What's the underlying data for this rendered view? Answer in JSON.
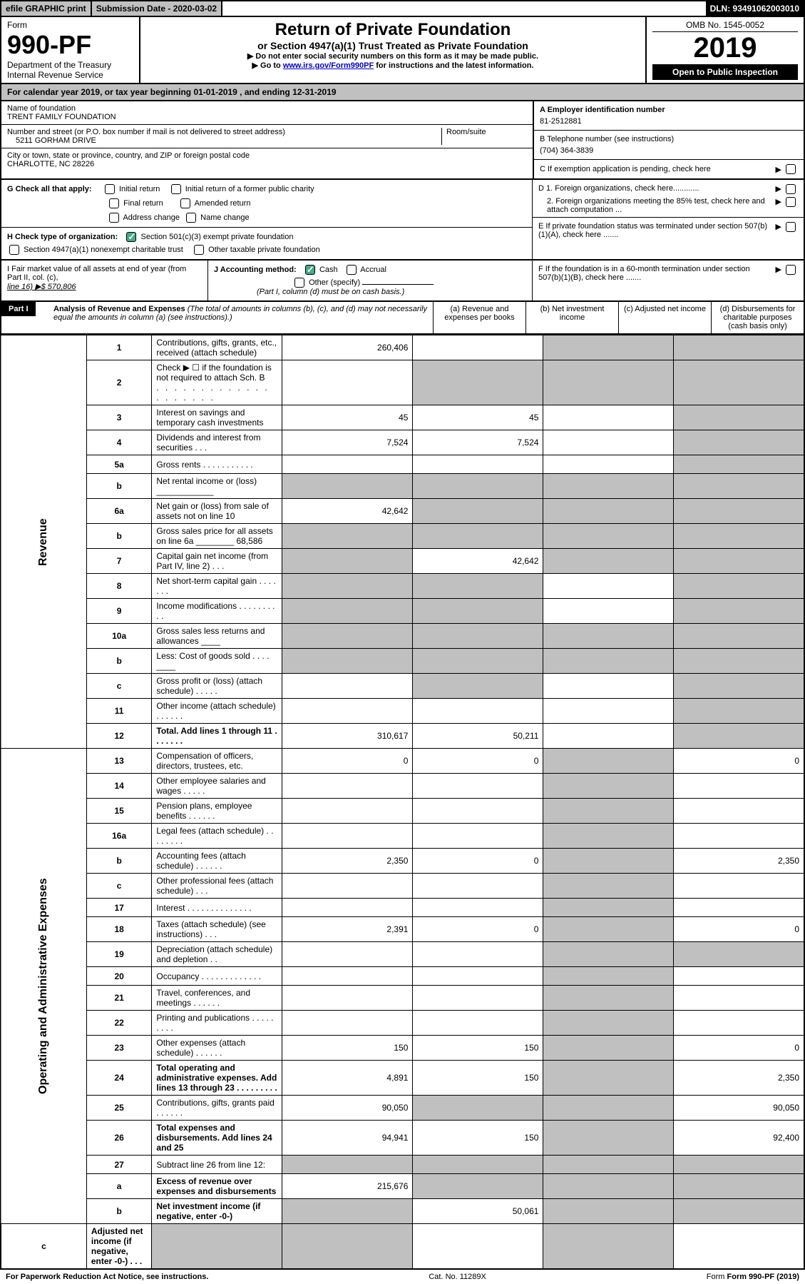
{
  "top": {
    "efile": "efile GRAPHIC print",
    "subdate_label": "Submission Date - 2020-03-02",
    "dln": "DLN: 93491062003010"
  },
  "header": {
    "form_label": "Form",
    "form_num": "990-PF",
    "dept": "Department of the Treasury",
    "irs": "Internal Revenue Service",
    "title": "Return of Private Foundation",
    "subtitle": "or Section 4947(a)(1) Trust Treated as Private Foundation",
    "instr1": "▶ Do not enter social security numbers on this form as it may be made public.",
    "instr2_pre": "▶ Go to ",
    "instr2_link": "www.irs.gov/Form990PF",
    "instr2_post": " for instructions and the latest information.",
    "omb": "OMB No. 1545-0052",
    "year": "2019",
    "open": "Open to Public Inspection"
  },
  "calyear": "For calendar year 2019, or tax year beginning 01-01-2019             , and ending 12-31-2019",
  "id": {
    "name_label": "Name of foundation",
    "name": "TRENT FAMILY FOUNDATION",
    "addr_label": "Number and street (or P.O. box number if mail is not delivered to street address)",
    "addr": "5211 GORHAM DRIVE",
    "room_label": "Room/suite",
    "city_label": "City or town, state or province, country, and ZIP or foreign postal code",
    "city": "CHARLOTTE, NC  28226",
    "a_label": "A Employer identification number",
    "a_val": "81-2512881",
    "b_label": "B Telephone number (see instructions)",
    "b_val": "(704) 364-3839",
    "c_label": "C If exemption application is pending, check here"
  },
  "g": {
    "label": "G Check all that apply:",
    "c1": "Initial return",
    "c2": "Initial return of a former public charity",
    "c3": "Final return",
    "c4": "Amended return",
    "c5": "Address change",
    "c6": "Name change"
  },
  "h": {
    "label": "H Check type of organization:",
    "c1": "Section 501(c)(3) exempt private foundation",
    "c2": "Section 4947(a)(1) nonexempt charitable trust",
    "c3": "Other taxable private foundation"
  },
  "d": {
    "d1": "D 1. Foreign organizations, check here............",
    "d2": "2. Foreign organizations meeting the 85% test, check here and attach computation ..."
  },
  "e": "E  If private foundation status was terminated under section 507(b)(1)(A), check here .......",
  "f": "F  If the foundation is in a 60-month termination under section 507(b)(1)(B), check here .......",
  "i": {
    "label": "I Fair market value of all assets at end of year (from Part II, col. (c),",
    "line16": "line 16) ▶$  570,806"
  },
  "j": {
    "label": "J Accounting method:",
    "cash": "Cash",
    "accrual": "Accrual",
    "other": "Other (specify)",
    "note": "(Part I, column (d) must be on cash basis.)"
  },
  "part1": {
    "tag": "Part I",
    "title": "Analysis of Revenue and Expenses",
    "note": "(The total of amounts in columns (b), (c), and (d) may not necessarily equal the amounts in column (a) (see instructions).)",
    "col_a": "(a)   Revenue and expenses per books",
    "col_b": "(b)  Net investment income",
    "col_c": "(c)  Adjusted net income",
    "col_d": "(d)  Disbursements for charitable purposes (cash basis only)"
  },
  "revenue_label": "Revenue",
  "oae_label": "Operating and Administrative Expenses",
  "rows": [
    {
      "n": "1",
      "d": "Contributions, gifts, grants, etc., received (attach schedule)",
      "a": "260,406",
      "b": "",
      "c": "g",
      "dd": "g"
    },
    {
      "n": "2",
      "d": "Check ▶ ☐ if the foundation is not required to attach Sch. B",
      "a": "",
      "b": "g",
      "c": "g",
      "dd": "g",
      "dots": ". . . . . . . . . . . . . . . . . . . ."
    },
    {
      "n": "3",
      "d": "Interest on savings and temporary cash investments",
      "a": "45",
      "b": "45",
      "c": "",
      "dd": "g"
    },
    {
      "n": "4",
      "d": "Dividends and interest from securities   . . .",
      "a": "7,524",
      "b": "7,524",
      "c": "",
      "dd": "g"
    },
    {
      "n": "5a",
      "d": "Gross rents   . . . . . . . . . . .",
      "a": "",
      "b": "",
      "c": "",
      "dd": "g"
    },
    {
      "n": "b",
      "d": "Net rental income or (loss)  ____________",
      "a": "g",
      "b": "g",
      "c": "g",
      "dd": "g"
    },
    {
      "n": "6a",
      "d": "Net gain or (loss) from sale of assets not on line 10",
      "a": "42,642",
      "b": "g",
      "c": "g",
      "dd": "g"
    },
    {
      "n": "b",
      "d": "Gross sales price for all assets on line 6a ________ 68,586",
      "a": "g",
      "b": "g",
      "c": "g",
      "dd": "g"
    },
    {
      "n": "7",
      "d": "Capital gain net income (from Part IV, line 2)   . . .",
      "a": "g",
      "b": "42,642",
      "c": "g",
      "dd": "g"
    },
    {
      "n": "8",
      "d": "Net short-term capital gain   . . . . . . .",
      "a": "g",
      "b": "g",
      "c": "",
      "dd": "g"
    },
    {
      "n": "9",
      "d": "Income modifications  . . . . . . . . . .",
      "a": "g",
      "b": "g",
      "c": "",
      "dd": "g"
    },
    {
      "n": "10a",
      "d": "Gross sales less returns and allowances  ____",
      "a": "g",
      "b": "g",
      "c": "g",
      "dd": "g"
    },
    {
      "n": "b",
      "d": "Less: Cost of goods sold   . . . .  ____",
      "a": "g",
      "b": "g",
      "c": "g",
      "dd": "g"
    },
    {
      "n": "c",
      "d": "Gross profit or (loss) (attach schedule)   . . . . .",
      "a": "",
      "b": "g",
      "c": "",
      "dd": "g"
    },
    {
      "n": "11",
      "d": "Other income (attach schedule)   . . . . . .",
      "a": "",
      "b": "",
      "c": "",
      "dd": "g"
    },
    {
      "n": "12",
      "d": "Total. Add lines 1 through 11   . . . . . . .",
      "a": "310,617",
      "b": "50,211",
      "c": "",
      "dd": "g",
      "bold": true
    },
    {
      "n": "13",
      "d": "Compensation of officers, directors, trustees, etc.",
      "a": "0",
      "b": "0",
      "c": "g",
      "dd": "0"
    },
    {
      "n": "14",
      "d": "Other employee salaries and wages   . . . . .",
      "a": "",
      "b": "",
      "c": "g",
      "dd": ""
    },
    {
      "n": "15",
      "d": "Pension plans, employee benefits   . . . . . .",
      "a": "",
      "b": "",
      "c": "g",
      "dd": ""
    },
    {
      "n": "16a",
      "d": "Legal fees (attach schedule)  . . . . . . . .",
      "a": "",
      "b": "",
      "c": "g",
      "dd": ""
    },
    {
      "n": "b",
      "d": "Accounting fees (attach schedule)   . . . . . .",
      "a": "2,350",
      "b": "0",
      "c": "g",
      "dd": "2,350"
    },
    {
      "n": "c",
      "d": "Other professional fees (attach schedule)   . . .",
      "a": "",
      "b": "",
      "c": "g",
      "dd": ""
    },
    {
      "n": "17",
      "d": "Interest   . . . . . . . . . . . . . .",
      "a": "",
      "b": "",
      "c": "g",
      "dd": ""
    },
    {
      "n": "18",
      "d": "Taxes (attach schedule) (see instructions)   . . .",
      "a": "2,391",
      "b": "0",
      "c": "g",
      "dd": "0"
    },
    {
      "n": "19",
      "d": "Depreciation (attach schedule) and depletion   . .",
      "a": "",
      "b": "",
      "c": "g",
      "dd": "g"
    },
    {
      "n": "20",
      "d": "Occupancy  . . . . . . . . . . . . .",
      "a": "",
      "b": "",
      "c": "g",
      "dd": ""
    },
    {
      "n": "21",
      "d": "Travel, conferences, and meetings  . . . . . .",
      "a": "",
      "b": "",
      "c": "g",
      "dd": ""
    },
    {
      "n": "22",
      "d": "Printing and publications  . . . . . . . . .",
      "a": "",
      "b": "",
      "c": "g",
      "dd": ""
    },
    {
      "n": "23",
      "d": "Other expenses (attach schedule)  . . . . . .",
      "a": "150",
      "b": "150",
      "c": "g",
      "dd": "0"
    },
    {
      "n": "24",
      "d": "Total operating and administrative expenses. Add lines 13 through 23   . . . . . . . . .",
      "a": "4,891",
      "b": "150",
      "c": "g",
      "dd": "2,350",
      "bold": true
    },
    {
      "n": "25",
      "d": "Contributions, gifts, grants paid   . . . . . .",
      "a": "90,050",
      "b": "g",
      "c": "g",
      "dd": "90,050"
    },
    {
      "n": "26",
      "d": "Total expenses and disbursements. Add lines 24 and 25",
      "a": "94,941",
      "b": "150",
      "c": "g",
      "dd": "92,400",
      "bold": true
    },
    {
      "n": "27",
      "d": "Subtract line 26 from line 12:",
      "a": "g",
      "b": "g",
      "c": "g",
      "dd": "g"
    },
    {
      "n": "a",
      "d": "Excess of revenue over expenses and disbursements",
      "a": "215,676",
      "b": "g",
      "c": "g",
      "dd": "g",
      "bold": true
    },
    {
      "n": "b",
      "d": "Net investment income (if negative, enter -0-)",
      "a": "g",
      "b": "50,061",
      "c": "g",
      "dd": "g",
      "bold": true
    },
    {
      "n": "c",
      "d": "Adjusted net income (if negative, enter -0-)   . . .",
      "a": "g",
      "b": "g",
      "c": "",
      "dd": "g",
      "bold": true
    }
  ],
  "footer": {
    "left": "For Paperwork Reduction Act Notice, see instructions.",
    "center": "Cat. No. 11289X",
    "right": "Form 990-PF (2019)"
  }
}
